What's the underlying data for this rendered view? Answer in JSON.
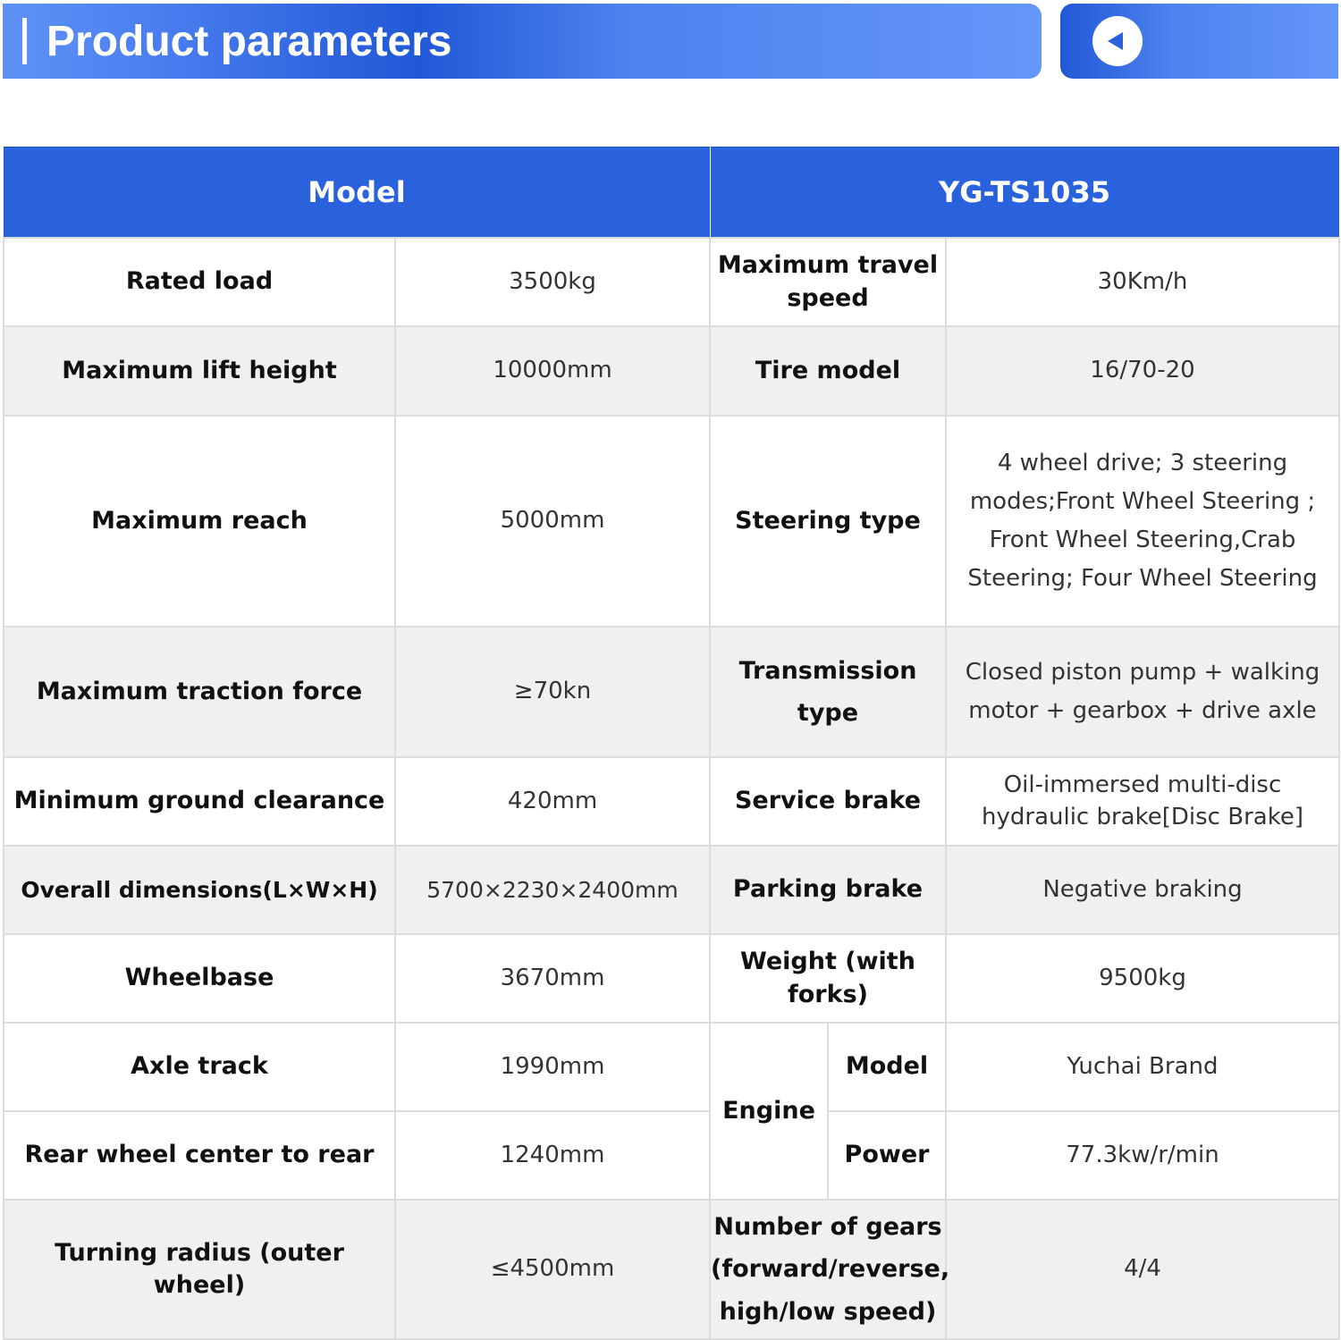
{
  "header": {
    "title": "Product parameters",
    "back_icon": "back-arrow-circle-icon"
  },
  "table": {
    "head": [
      "Model",
      "YG-TS1035"
    ],
    "rows": [
      {
        "l1": "Rated load",
        "v1": "3500kg",
        "l2": "Maximum travel speed",
        "v2": "30Km/h"
      },
      {
        "l1": "Maximum lift height",
        "v1": "10000mm",
        "l2": "Tire model",
        "v2": "16/70-20"
      },
      {
        "l1": "Maximum reach",
        "v1": "5000mm",
        "l2": "Steering type",
        "v2": "4 wheel drive; 3 steering modes;Front Wheel Steering ; Front Wheel Steering,Crab Steering; Four Wheel Steering"
      },
      {
        "l1": "Maximum traction force",
        "v1": "≥70kn",
        "l2": "Transmission type",
        "v2": "Closed piston pump + walking motor + gearbox + drive axle"
      },
      {
        "l1": "Minimum ground clearance",
        "v1": "420mm",
        "l2": "Service brake",
        "v2": "Oil-immersed multi-disc hydraulic brake[Disc Brake]"
      },
      {
        "l1": "Overall dimensions(L×W×H)",
        "v1": "5700×2230×2400mm",
        "l2": "Parking brake",
        "v2": "Negative braking"
      },
      {
        "l1": "Wheelbase",
        "v1": "3670mm",
        "l2": "Weight (with forks)",
        "v2": "9500kg"
      },
      {
        "l1": "Axle track",
        "v1": "1990mm",
        "group": "Engine",
        "l2": "Model",
        "v2": "Yuchai Brand"
      },
      {
        "l1": "Rear wheel center to rear",
        "v1": "1240mm",
        "l2": "Power",
        "v2": "77.3kw/r/min"
      },
      {
        "l1": "Turning radius (outer wheel)",
        "v1": "≤4500mm",
        "l2": "Number of gears (forward/reverse, high/low speed)",
        "v2": "4/4"
      }
    ]
  }
}
